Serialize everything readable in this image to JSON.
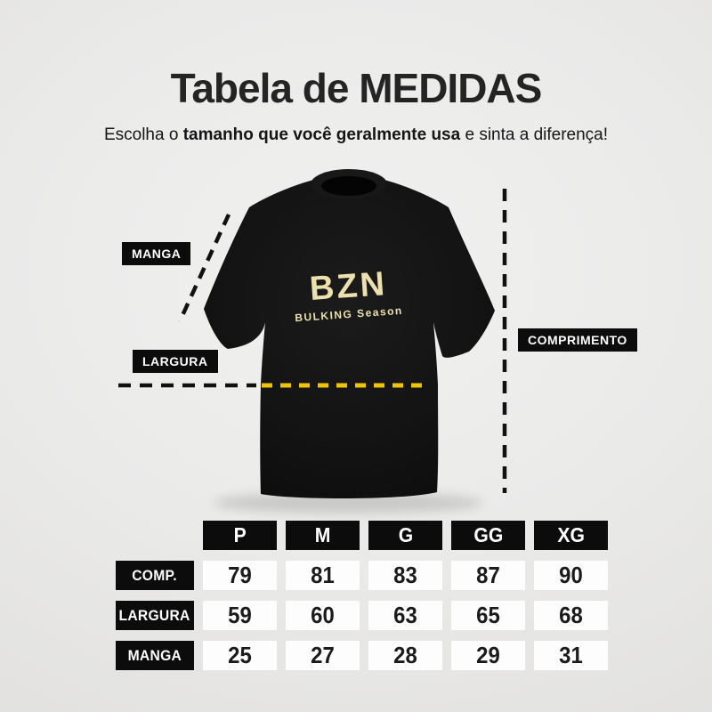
{
  "page": {
    "title": "Tabela de MEDIDAS",
    "subtitle_pre": "Escolha o ",
    "subtitle_bold": "tamanho que você geralmente usa",
    "subtitle_post": " e sinta a diferença!"
  },
  "diagram": {
    "labels": {
      "sleeve": "MANGA",
      "width": "LARGURA",
      "length": "COMPRIMENTO"
    },
    "shirt_logo": {
      "brand": "BZN",
      "tagline": "BULKING Season"
    },
    "colors": {
      "accent_yellow": "#EDC407",
      "label_bg": "#0C0C0C",
      "label_text": "#FFFFFF",
      "shirt_black": "#131313",
      "logo_cream": "#ECE0AE"
    }
  },
  "table": {
    "columns": [
      "P",
      "M",
      "G",
      "GG",
      "XG"
    ],
    "rows": [
      {
        "label": "COMP.",
        "values": [
          "79",
          "81",
          "83",
          "87",
          "90"
        ]
      },
      {
        "label": "LARGURA",
        "values": [
          "59",
          "60",
          "63",
          "65",
          "68"
        ]
      },
      {
        "label": "MANGA",
        "values": [
          "25",
          "27",
          "28",
          "29",
          "31"
        ]
      }
    ]
  },
  "chart_data": {
    "type": "table",
    "title": "Tabela de MEDIDAS",
    "columns": [
      "P",
      "M",
      "G",
      "GG",
      "XG"
    ],
    "rows": [
      {
        "label": "COMP.",
        "values": [
          79,
          81,
          83,
          87,
          90
        ]
      },
      {
        "label": "LARGURA",
        "values": [
          59,
          60,
          63,
          65,
          68
        ]
      },
      {
        "label": "MANGA",
        "values": [
          25,
          27,
          28,
          29,
          31
        ]
      }
    ]
  }
}
